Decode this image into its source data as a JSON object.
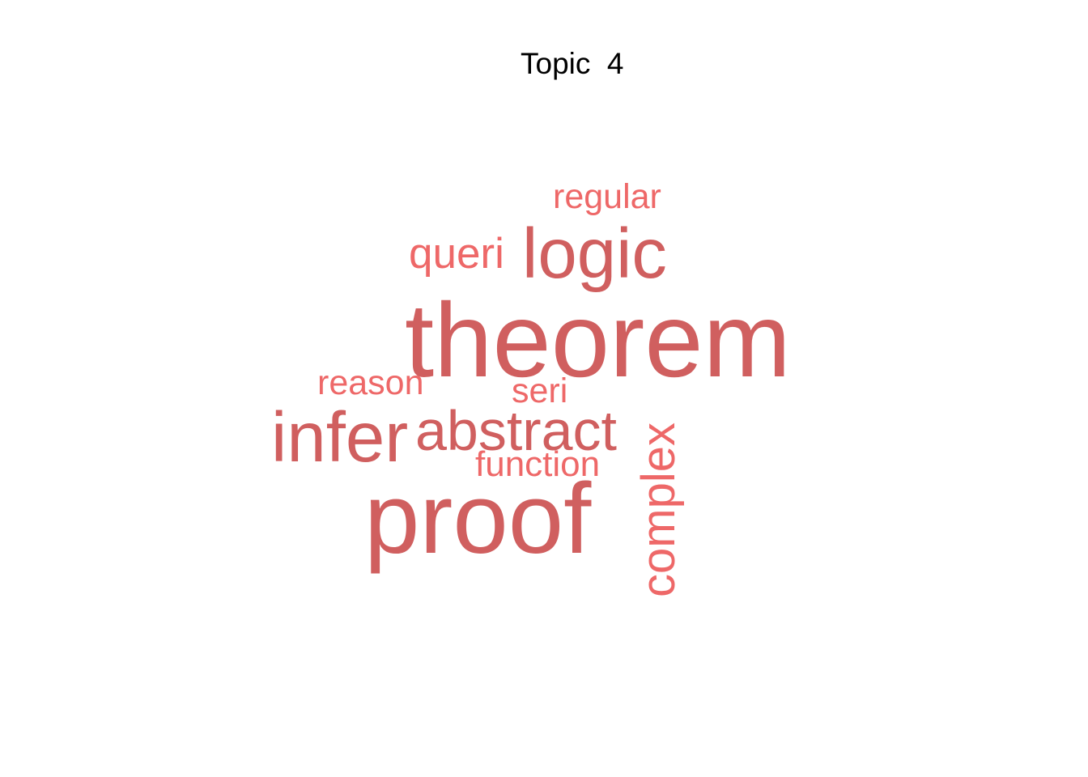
{
  "title": "Topic  4",
  "colors": {
    "dark": "#D05F5F",
    "light": "#EE6868",
    "title": "#000000",
    "background": "#FFFFFF"
  },
  "words": {
    "regular": "regular",
    "logic": "logic",
    "queri": "queri",
    "theorem": "theorem",
    "reason": "reason",
    "seri": "seri",
    "infer": "infer",
    "abstract": "abstract",
    "function": "function",
    "proof": "proof",
    "complex": "complex"
  }
}
